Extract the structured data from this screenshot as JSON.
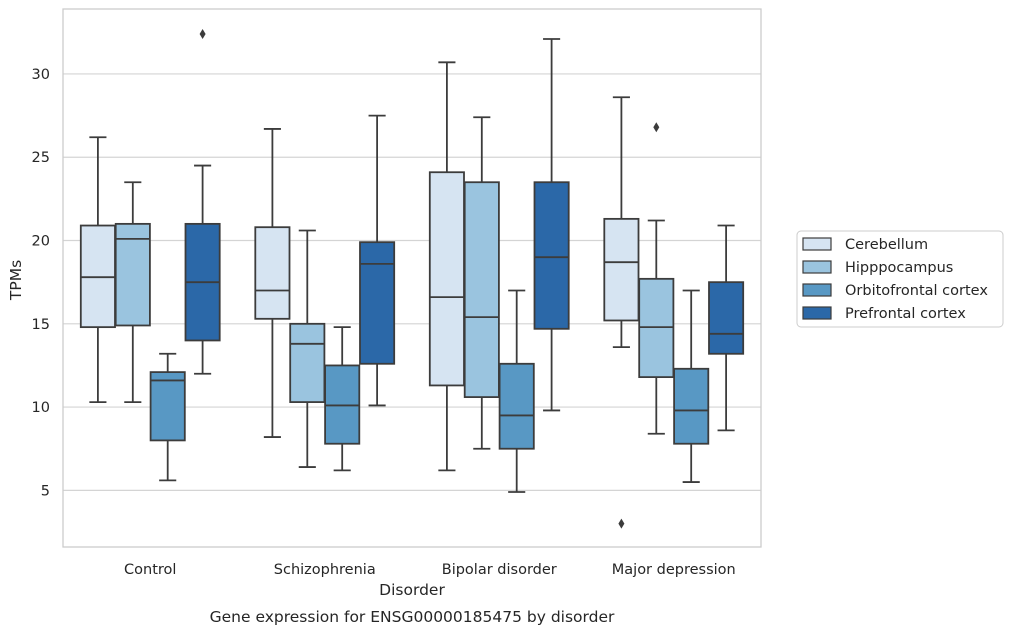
{
  "chart_data": {
    "type": "boxplot",
    "xlabel": "Disorder",
    "ylabel": "TPMs",
    "caption": "Gene expression for ENSG00000185475 by disorder",
    "ylim": [
      1.6,
      33.9
    ],
    "yticks": [
      "5",
      "10",
      "15",
      "20",
      "25",
      "30"
    ],
    "grid": "horizontal",
    "legend_position": "right",
    "categories": [
      "Control",
      "Schizophrenia",
      "Bipolar disorder",
      "Major depression"
    ],
    "series": [
      {
        "name": "Cerebellum",
        "color": "#d6e4f2",
        "boxes": [
          {
            "whislo": 10.3,
            "q1": 14.8,
            "med": 17.8,
            "q3": 20.9,
            "whishi": 26.2,
            "fliers": []
          },
          {
            "whislo": 8.2,
            "q1": 15.3,
            "med": 17.0,
            "q3": 20.8,
            "whishi": 26.7,
            "fliers": []
          },
          {
            "whislo": 6.2,
            "q1": 11.3,
            "med": 16.6,
            "q3": 24.1,
            "whishi": 30.7,
            "fliers": []
          },
          {
            "whislo": 13.6,
            "q1": 15.2,
            "med": 18.7,
            "q3": 21.3,
            "whishi": 28.6,
            "fliers": [
              3.0
            ]
          }
        ]
      },
      {
        "name": "Hipppocampus",
        "color": "#9ac4df",
        "boxes": [
          {
            "whislo": 10.3,
            "q1": 14.9,
            "med": 20.1,
            "q3": 21.0,
            "whishi": 23.5,
            "fliers": []
          },
          {
            "whislo": 6.4,
            "q1": 10.3,
            "med": 13.8,
            "q3": 15.0,
            "whishi": 20.6,
            "fliers": []
          },
          {
            "whislo": 7.5,
            "q1": 10.6,
            "med": 15.4,
            "q3": 23.5,
            "whishi": 27.4,
            "fliers": []
          },
          {
            "whislo": 8.4,
            "q1": 11.8,
            "med": 14.8,
            "q3": 17.7,
            "whishi": 21.2,
            "fliers": [
              26.8
            ]
          }
        ]
      },
      {
        "name": "Orbitofrontal cortex",
        "color": "#5898c4",
        "boxes": [
          {
            "whislo": 5.6,
            "q1": 8.0,
            "med": 11.6,
            "q3": 12.1,
            "whishi": 13.2,
            "fliers": []
          },
          {
            "whislo": 6.2,
            "q1": 7.8,
            "med": 10.1,
            "q3": 12.5,
            "whishi": 14.8,
            "fliers": []
          },
          {
            "whislo": 4.9,
            "q1": 7.5,
            "med": 9.5,
            "q3": 12.6,
            "whishi": 17.0,
            "fliers": []
          },
          {
            "whislo": 5.5,
            "q1": 7.8,
            "med": 9.8,
            "q3": 12.3,
            "whishi": 17.0,
            "fliers": []
          }
        ]
      },
      {
        "name": "Prefrontal cortex",
        "color": "#2b68a8",
        "boxes": [
          {
            "whislo": 12.0,
            "q1": 14.0,
            "med": 17.5,
            "q3": 21.0,
            "whishi": 24.5,
            "fliers": [
              32.4
            ]
          },
          {
            "whislo": 10.1,
            "q1": 12.6,
            "med": 18.6,
            "q3": 19.9,
            "whishi": 27.5,
            "fliers": []
          },
          {
            "whislo": 9.8,
            "q1": 14.7,
            "med": 19.0,
            "q3": 23.5,
            "whishi": 32.1,
            "fliers": []
          },
          {
            "whislo": 8.6,
            "q1": 13.2,
            "med": 14.4,
            "q3": 17.5,
            "whishi": 20.9,
            "fliers": []
          }
        ]
      }
    ]
  }
}
